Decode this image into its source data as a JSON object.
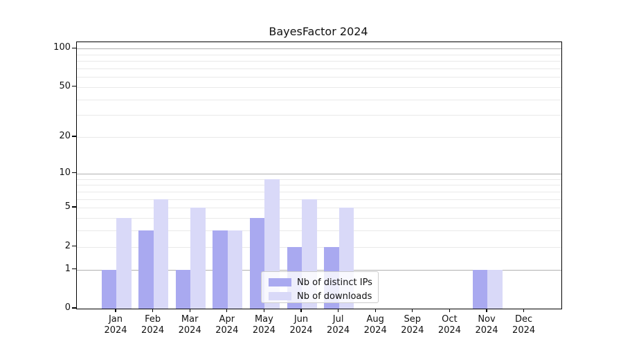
{
  "chart_data": {
    "type": "bar",
    "title": "BayesFactor 2024",
    "categories": [
      "Jan",
      "Feb",
      "Mar",
      "Apr",
      "May",
      "Jun",
      "Jul",
      "Aug",
      "Sep",
      "Oct",
      "Nov",
      "Dec"
    ],
    "category_year": "2024",
    "series": [
      {
        "name": "Nb of distinct IPs",
        "color": "#a9a9f0",
        "values": [
          1,
          3,
          1,
          3,
          4,
          2,
          2,
          0,
          0,
          0,
          1,
          0
        ]
      },
      {
        "name": "Nb of downloads",
        "color": "#d9d9f8",
        "values": [
          4,
          6,
          5,
          3,
          9,
          6,
          5,
          0,
          0,
          0,
          1,
          0
        ]
      }
    ],
    "y_scale": "log1p",
    "y_axis": {
      "labeled_ticks": [
        100,
        50,
        20,
        10,
        5,
        2,
        1,
        0
      ],
      "minor_gridlines": [
        3,
        4,
        6,
        7,
        8,
        9,
        30,
        40,
        60,
        70,
        80,
        90
      ],
      "major_gridlines": [
        1,
        10,
        100
      ],
      "ylim": [
        0,
        112
      ]
    },
    "xlabel": "",
    "ylabel": "",
    "grid": true,
    "legend": {
      "position": "bottom-center",
      "entries": [
        "Nb of distinct IPs",
        "Nb of downloads"
      ]
    }
  },
  "colors": {
    "series_ips": "#a9a9f0",
    "series_downloads": "#d9d9f8",
    "major_grid": "#b0b0b0",
    "minor_grid": "#e9e9e9",
    "spine": "#000000",
    "legend_border": "#cccccc"
  }
}
